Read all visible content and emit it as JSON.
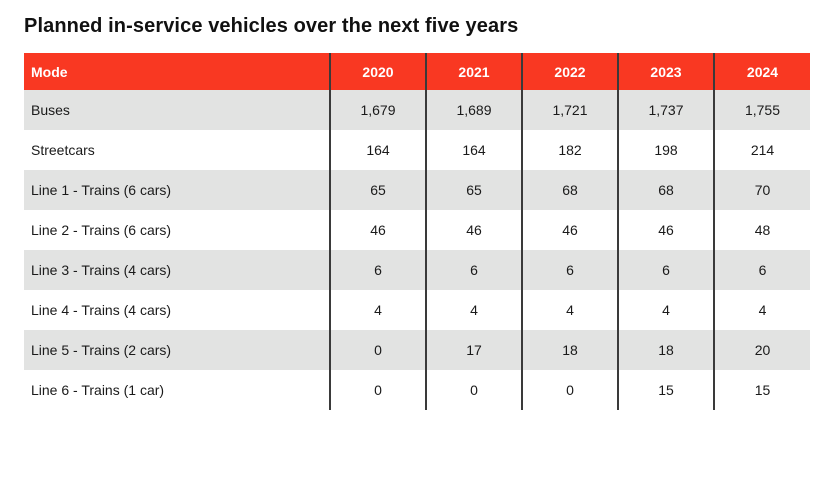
{
  "page": {
    "title": "Planned in-service vehicles over the next five years"
  },
  "table": {
    "columns": [
      "Mode",
      "2020",
      "2021",
      "2022",
      "2023",
      "2024"
    ],
    "rows": [
      {
        "mode": "Buses",
        "values": [
          "1,679",
          "1,689",
          "1,721",
          "1,737",
          "1,755"
        ]
      },
      {
        "mode": "Streetcars",
        "values": [
          "164",
          "164",
          "182",
          "198",
          "214"
        ]
      },
      {
        "mode": "Line 1 - Trains (6 cars)",
        "values": [
          "65",
          "65",
          "68",
          "68",
          "70"
        ]
      },
      {
        "mode": "Line 2 - Trains (6 cars)",
        "values": [
          "46",
          "46",
          "46",
          "46",
          "48"
        ]
      },
      {
        "mode": "Line 3 - Trains (4 cars)",
        "values": [
          "6",
          "6",
          "6",
          "6",
          "6"
        ]
      },
      {
        "mode": "Line 4 - Trains (4 cars)",
        "values": [
          "4",
          "4",
          "4",
          "4",
          "4"
        ]
      },
      {
        "mode": "Line 5 - Trains (2 cars)",
        "values": [
          "0",
          "17",
          "18",
          "18",
          "20"
        ]
      },
      {
        "mode": "Line 6 - Trains (1 car)",
        "values": [
          "0",
          "0",
          "0",
          "15",
          "15"
        ]
      }
    ]
  },
  "chart_data": {
    "type": "table",
    "title": "Planned in-service vehicles over the next five years",
    "columns": [
      "Mode",
      "2020",
      "2021",
      "2022",
      "2023",
      "2024"
    ],
    "rows": [
      {
        "mode": "Buses",
        "values": [
          1679,
          1689,
          1721,
          1737,
          1755
        ]
      },
      {
        "mode": "Streetcars",
        "values": [
          164,
          164,
          182,
          198,
          214
        ]
      },
      {
        "mode": "Line 1 - Trains (6 cars)",
        "values": [
          65,
          65,
          68,
          68,
          70
        ]
      },
      {
        "mode": "Line 2 - Trains (6 cars)",
        "values": [
          46,
          46,
          46,
          46,
          48
        ]
      },
      {
        "mode": "Line 3 - Trains (4 cars)",
        "values": [
          6,
          6,
          6,
          6,
          6
        ]
      },
      {
        "mode": "Line 4 - Trains (4 cars)",
        "values": [
          4,
          4,
          4,
          4,
          4
        ]
      },
      {
        "mode": "Line 5 - Trains (2 cars)",
        "values": [
          0,
          17,
          18,
          18,
          20
        ]
      },
      {
        "mode": "Line 6 - Trains (1 car)",
        "values": [
          0,
          0,
          0,
          15,
          15
        ]
      }
    ]
  },
  "colors": {
    "header_bg": "#f93822",
    "header_text": "#ffffff",
    "row_alt_bg": "#e2e3e2",
    "row_bg": "#ffffff",
    "divider": "#3a3a3a",
    "title_text": "#111111",
    "body_text": "#1a1a1a"
  }
}
